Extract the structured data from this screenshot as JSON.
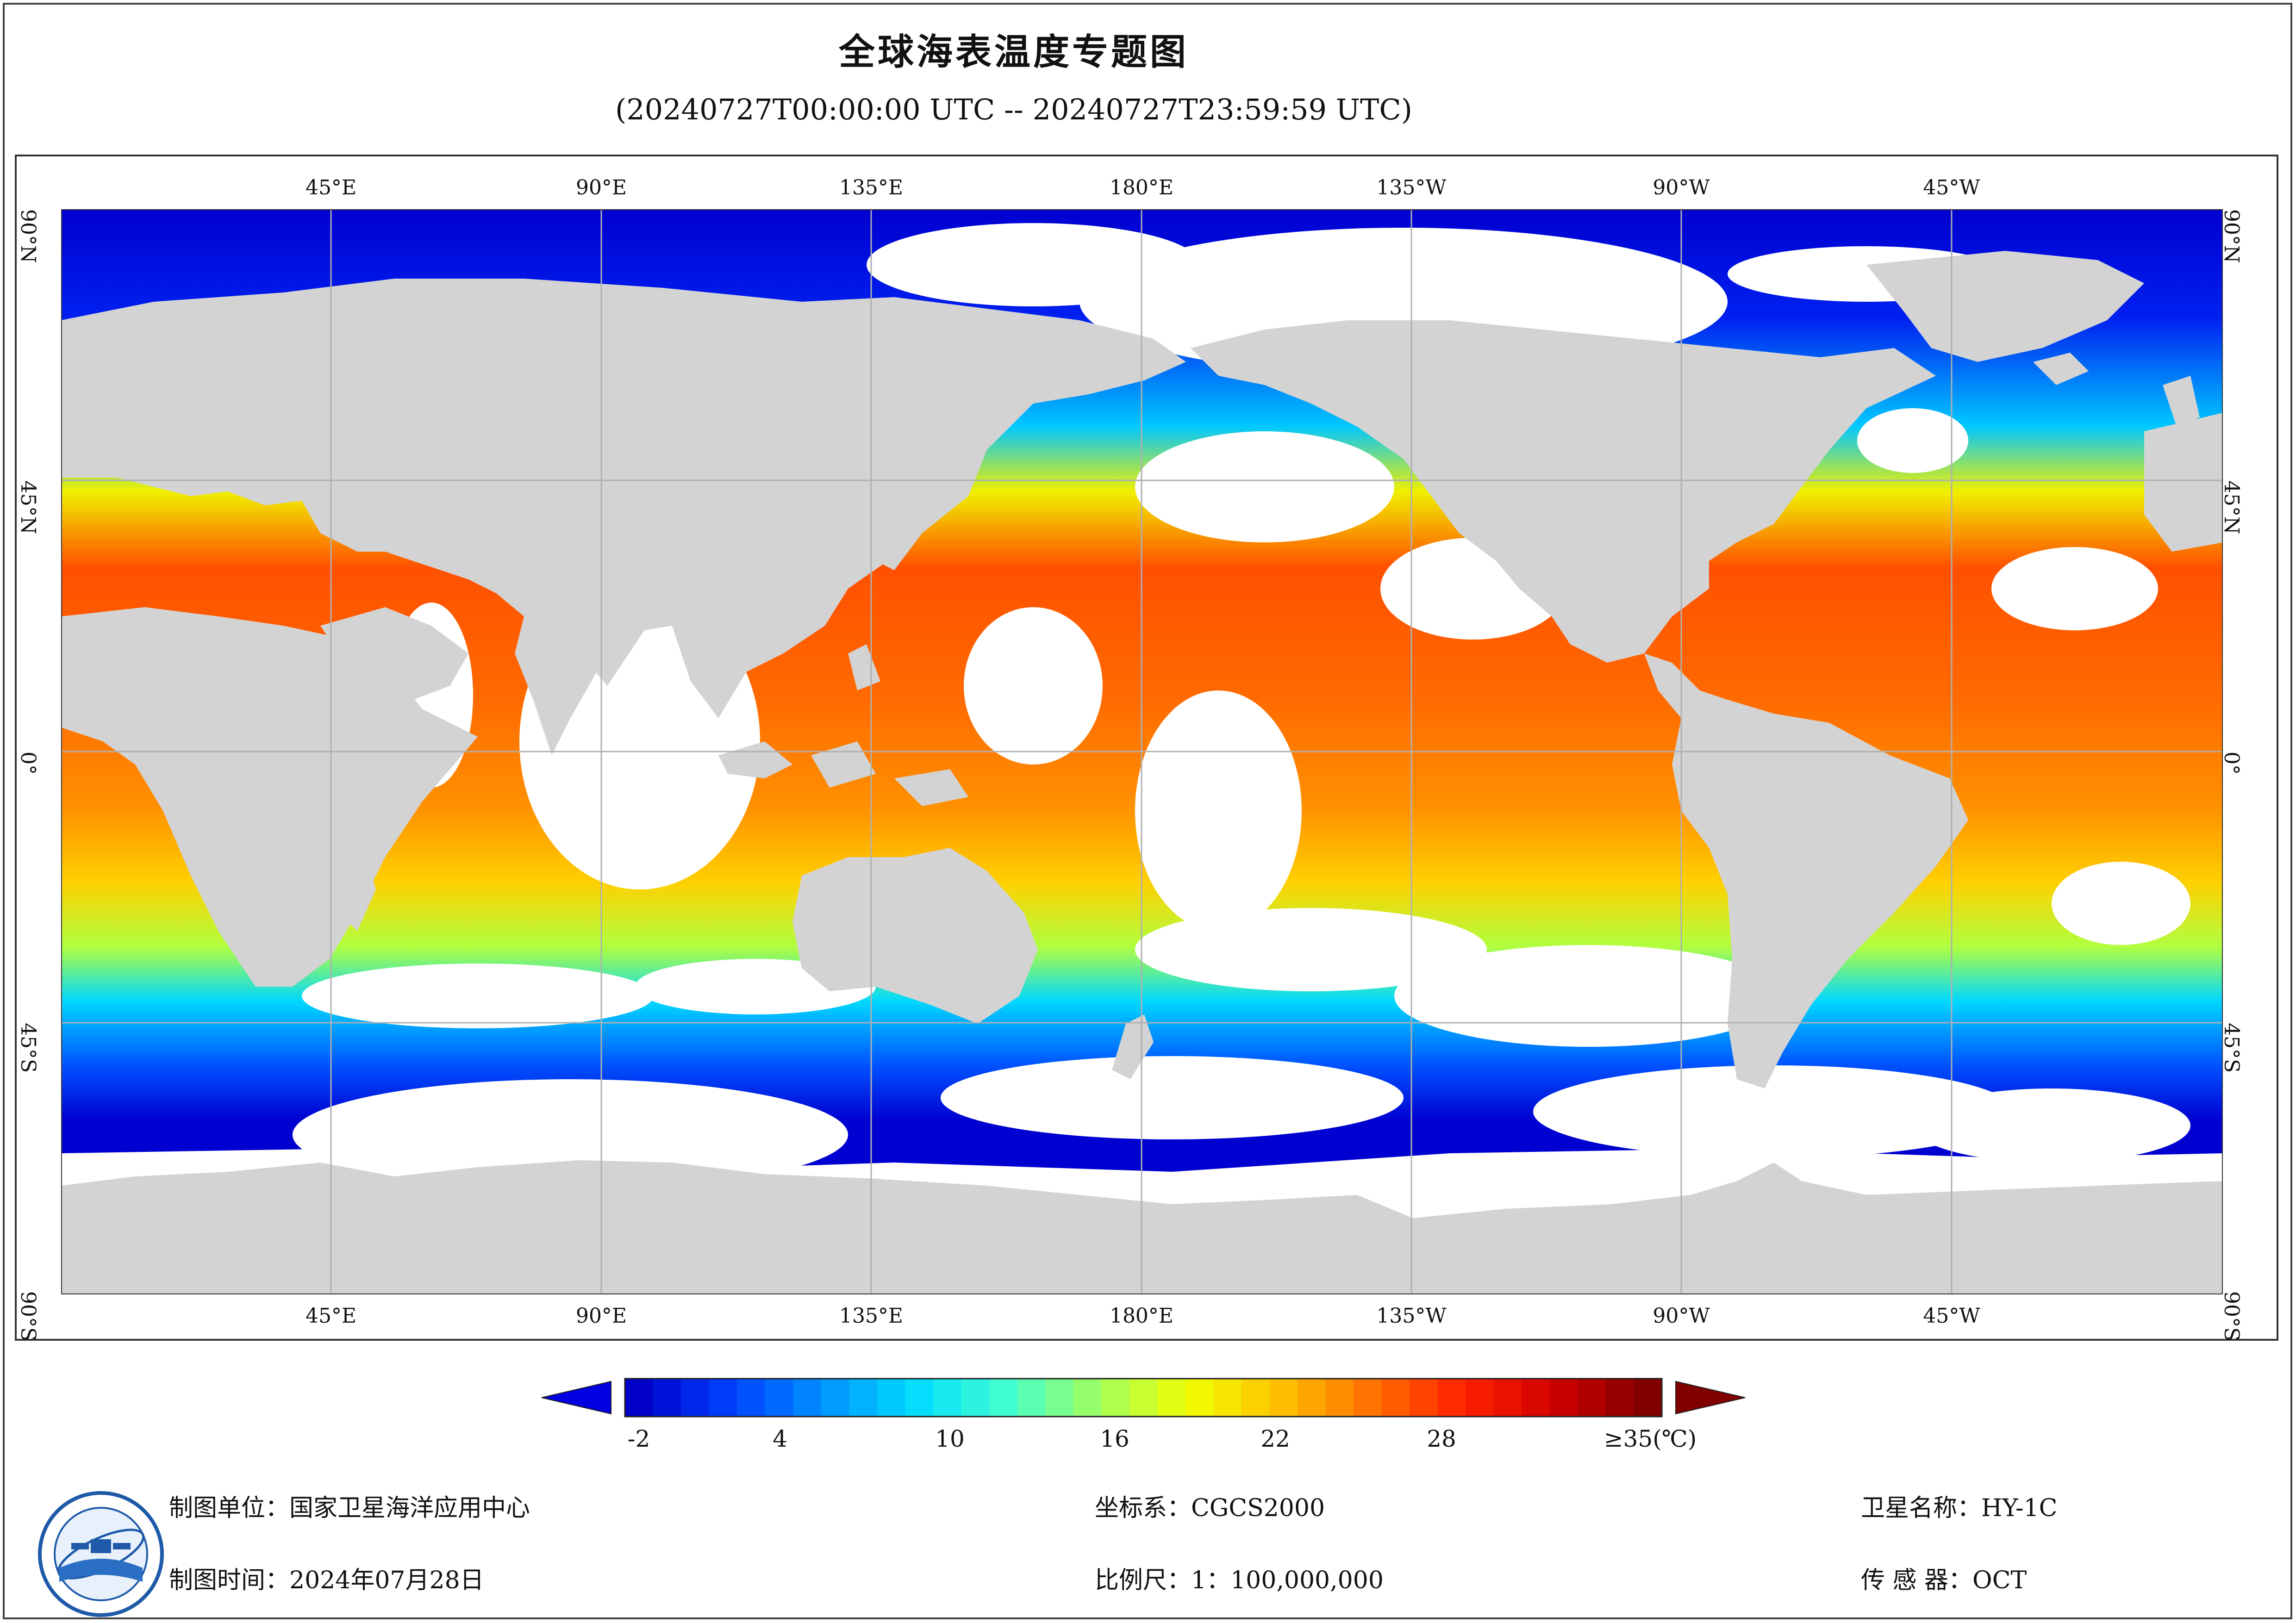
{
  "title": "全球海表温度专题图",
  "subtitle": "(20240727T00:00:00 UTC -- 20240727T23:59:59 UTC)",
  "map": {
    "lon_labels_top": [
      "45°E",
      "90°E",
      "135°E",
      "180°E",
      "135°W",
      "90°W",
      "45°W"
    ],
    "lon_labels_bottom": [
      "45°E",
      "90°E",
      "135°E",
      "180°E",
      "135°W",
      "90°W",
      "45°W"
    ],
    "lat_labels": [
      "90°N",
      "45°N",
      "0°",
      "45°S",
      "90°S"
    ],
    "colors": {
      "land": "#d3d3d3",
      "nodata": "#ffffff",
      "grid": "#b0b0b0"
    }
  },
  "colorbar": {
    "ticks": [
      "-2",
      "4",
      "10",
      "16",
      "22",
      "28",
      "≥35(℃)"
    ],
    "min": -2,
    "max": 35,
    "stops": [
      "#0000c8",
      "#0040ff",
      "#0090ff",
      "#00dcff",
      "#40ffd0",
      "#a0ff60",
      "#f0ff00",
      "#ffc000",
      "#ff7000",
      "#ff2000",
      "#d00000",
      "#800000"
    ]
  },
  "footer": {
    "org": "制图单位：国家卫星海洋应用中心",
    "time": "制图时间：2024年07月28日",
    "crs": "坐标系：CGCS2000",
    "scale": "比例尺：1：100,000,000",
    "satellite": "卫星名称：HY-1C",
    "sensor": "传 感 器：OCT",
    "logo_icon": "nsoas-logo-icon"
  }
}
